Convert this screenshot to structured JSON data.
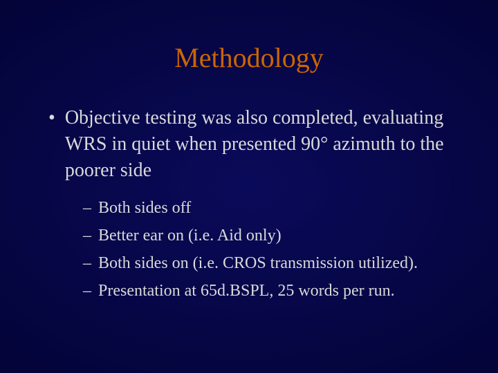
{
  "colors": {
    "title": "#cc6600",
    "body": "#d9d9d9"
  },
  "title": "Methodology",
  "bullet": {
    "text": "Objective testing was also completed, evaluating WRS in quiet when presented 90° azimuth to the poorer side"
  },
  "sub_items": [
    "Both sides off",
    "Better ear on (i.e. Aid only)",
    "Both sides on (i.e. CROS transmission utilized).",
    "Presentation at 65d.BSPL, 25 words per run."
  ]
}
